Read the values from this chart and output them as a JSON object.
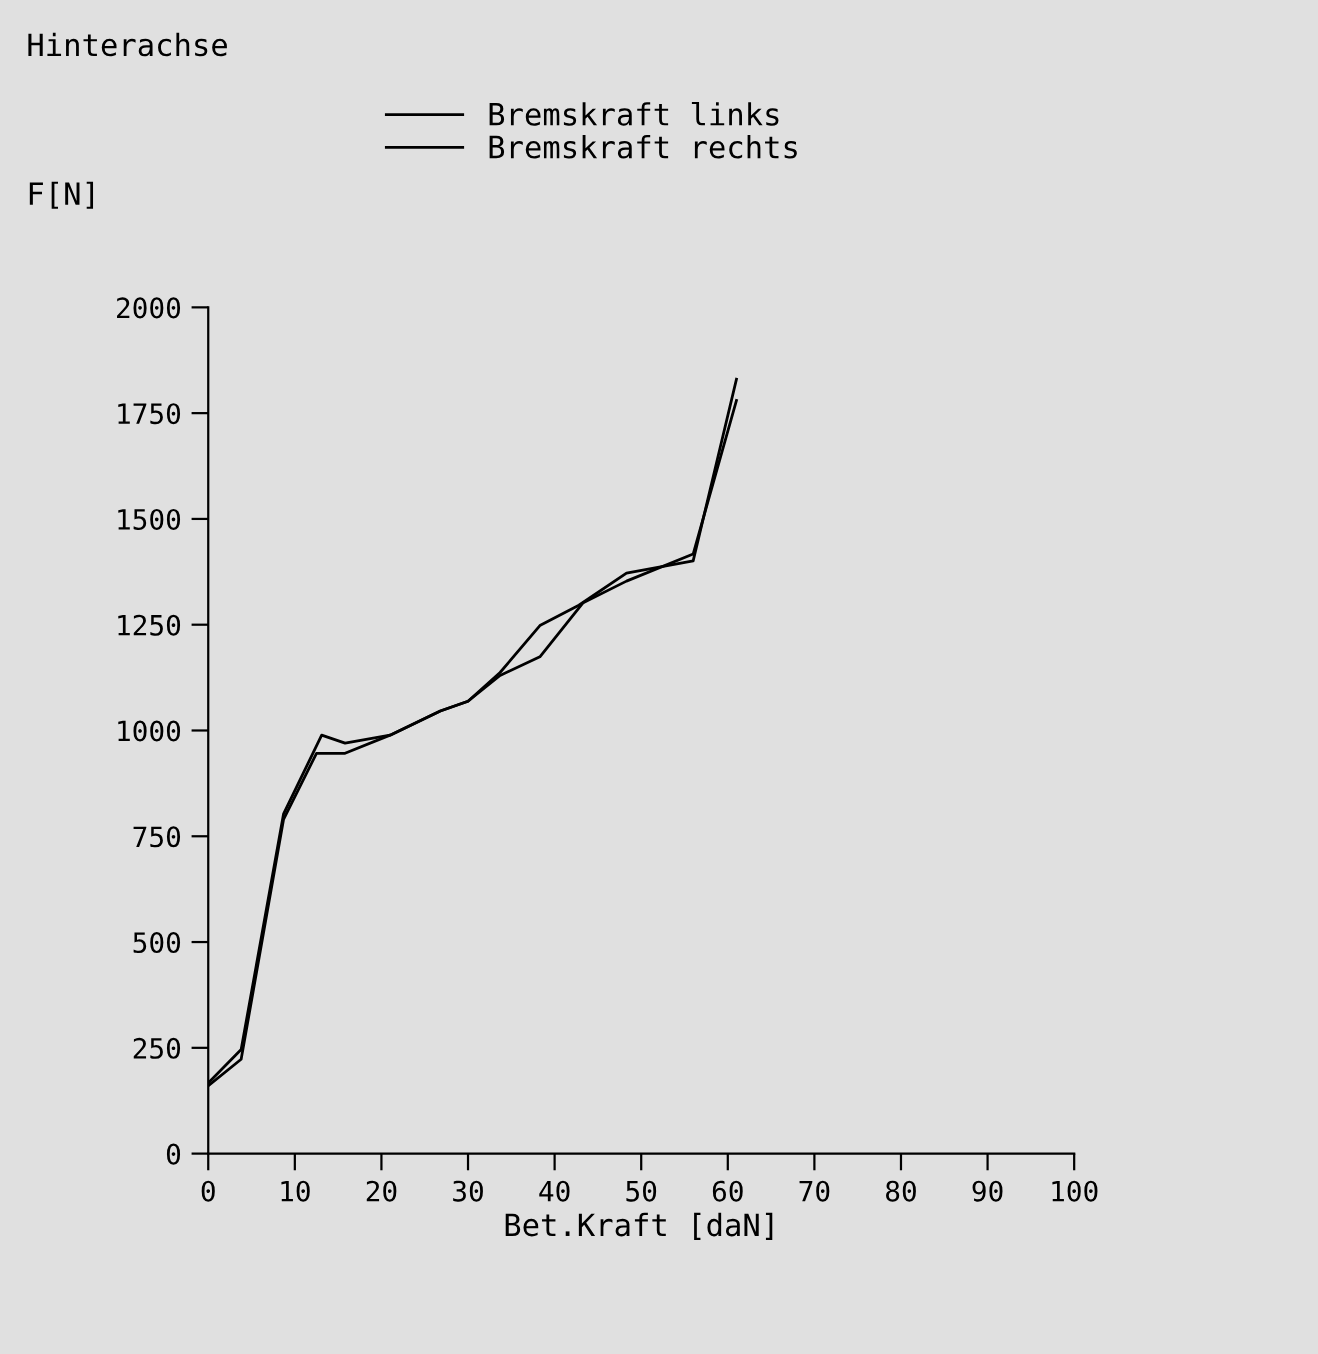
{
  "chart_data": {
    "type": "line",
    "title": "Hinterachse",
    "xlabel": "Bet.Kraft [daN]",
    "ylabel": "F[N]",
    "xlim": [
      0,
      100
    ],
    "xticks": [
      0,
      10,
      20,
      30,
      40,
      50,
      60,
      70,
      80,
      90,
      100
    ],
    "ylim": [
      0,
      2000
    ],
    "yticks": [
      0,
      250,
      500,
      750,
      1000,
      1250,
      1500,
      1750,
      2000
    ],
    "grid": false,
    "legend": "top",
    "marker": "none",
    "line_style": "solid",
    "series": [
      {
        "name": "Bremskraft links",
        "color": "#000000",
        "x": [
          0,
          3.8,
          8.7,
          13.1,
          15.8,
          21,
          26.8,
          30,
          33.7,
          38.3,
          42.8,
          48.3,
          56,
          61
        ],
        "values": [
          167,
          246,
          803,
          989,
          970,
          989,
          1046,
          1069,
          1137,
          1248,
          1296,
          1372,
          1401,
          1830
        ]
      },
      {
        "name": "Bremskraft rechts",
        "color": "#000000",
        "x": [
          0,
          3.8,
          8.7,
          12.5,
          15.8,
          21,
          26.8,
          30,
          33.7,
          38.3,
          43.3,
          48.3,
          56,
          61
        ],
        "values": [
          160,
          223,
          790,
          946,
          946,
          989,
          1046,
          1069,
          1130,
          1174,
          1302,
          1353,
          1417,
          1780
        ]
      }
    ]
  }
}
